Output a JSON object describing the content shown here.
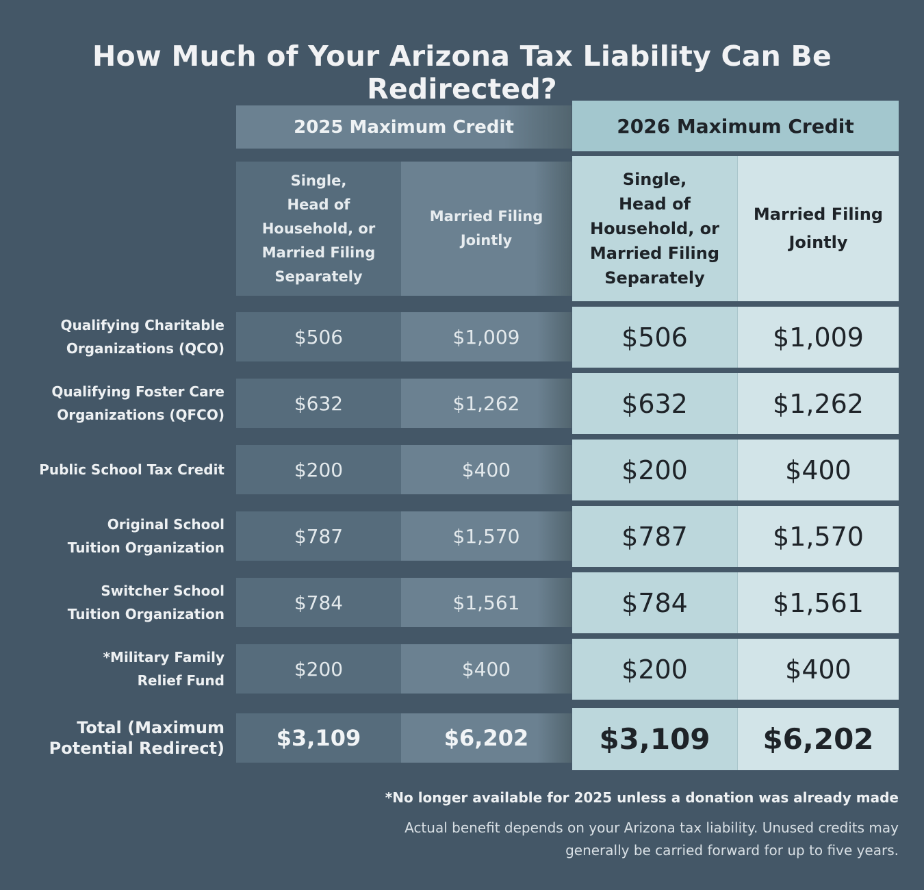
{
  "title": "How Much of Your Arizona Tax Liability Can Be Redirected?",
  "chart_data": {
    "type": "table",
    "column_groups": [
      {
        "label": "2025 Maximum Credit",
        "columns": [
          "Single,\nHead of\nHousehold, or\nMarried Filing\nSeparately",
          "Married Filing\nJointly"
        ]
      },
      {
        "label": "2026 Maximum Credit",
        "columns": [
          "Single,\nHead of\nHousehold, or\nMarried Filing\nSeparately",
          "Married Filing\nJointly"
        ]
      }
    ],
    "rows": [
      {
        "label": "Qualifying Charitable\nOrganizations (QCO)",
        "values": [
          "$506",
          "$1,009",
          "$506",
          "$1,009"
        ]
      },
      {
        "label": "Qualifying Foster Care\nOrganizations (QFCO)",
        "values": [
          "$632",
          "$1,262",
          "$632",
          "$1,262"
        ]
      },
      {
        "label": "Public School Tax Credit",
        "values": [
          "$200",
          "$400",
          "$200",
          "$400"
        ]
      },
      {
        "label": "Original School\nTuition Organization",
        "values": [
          "$787",
          "$1,570",
          "$787",
          "$1,570"
        ]
      },
      {
        "label": "Switcher School\nTuition Organization",
        "values": [
          "$784",
          "$1,561",
          "$784",
          "$1,561"
        ]
      },
      {
        "label": "*Military Family\nRelief Fund",
        "values": [
          "$200",
          "$400",
          "$200",
          "$400"
        ]
      }
    ],
    "total": {
      "label": "Total (Maximum\nPotential Redirect)",
      "values": [
        "$3,109",
        "$6,202",
        "$3,109",
        "$6,202"
      ]
    }
  },
  "footnotes": {
    "note1": "*No longer available for 2025 unless a donation was already made",
    "note2": "Actual benefit depends on your Arizona tax liability. Unused credits may generally be carried forward for up to five years."
  },
  "colors": {
    "background": "#445767",
    "col2025_dark": "#566c7c",
    "col2025_light": "#6b8191",
    "col2026_dark": "#bcd7dc",
    "col2026_light": "#d2e4e8",
    "header2026": "#a3c7ce"
  }
}
